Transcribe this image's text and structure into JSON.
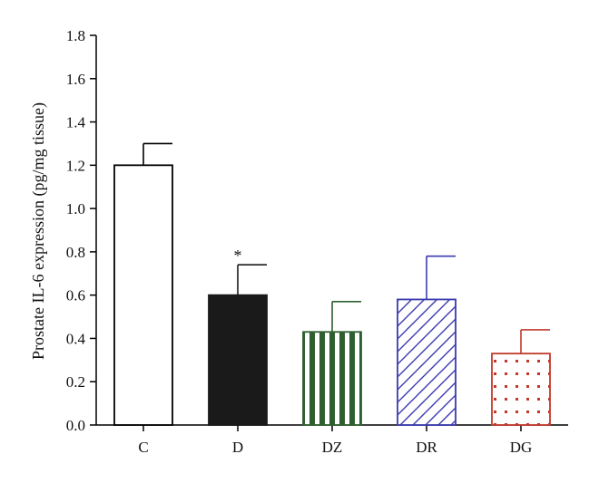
{
  "chart_data": {
    "type": "bar",
    "title": "",
    "xlabel": "",
    "ylabel": "Prostate IL-6 expression (pg/mg tissue)",
    "ylim": [
      0,
      1.8
    ],
    "yticks": [
      "0.0",
      "0.2",
      "0.4",
      "0.6",
      "0.8",
      "1.0",
      "1.2",
      "1.4",
      "1.6",
      "1.8"
    ],
    "grid": false,
    "categories": [
      "C",
      "D",
      "DZ",
      "DR",
      "DG"
    ],
    "values": [
      1.2,
      0.6,
      0.43,
      0.58,
      0.33
    ],
    "errors": [
      0.1,
      0.14,
      0.14,
      0.2,
      0.11
    ],
    "patterns": [
      "open",
      "solid",
      "vertical-stripes",
      "diagonal-hatch",
      "dots"
    ],
    "colors": [
      "#000000",
      "#1a1a1a",
      "#2f5f2f",
      "#3a3ab0",
      "#c0392b"
    ],
    "annotations": [
      {
        "category": "D",
        "text": "*"
      }
    ]
  }
}
